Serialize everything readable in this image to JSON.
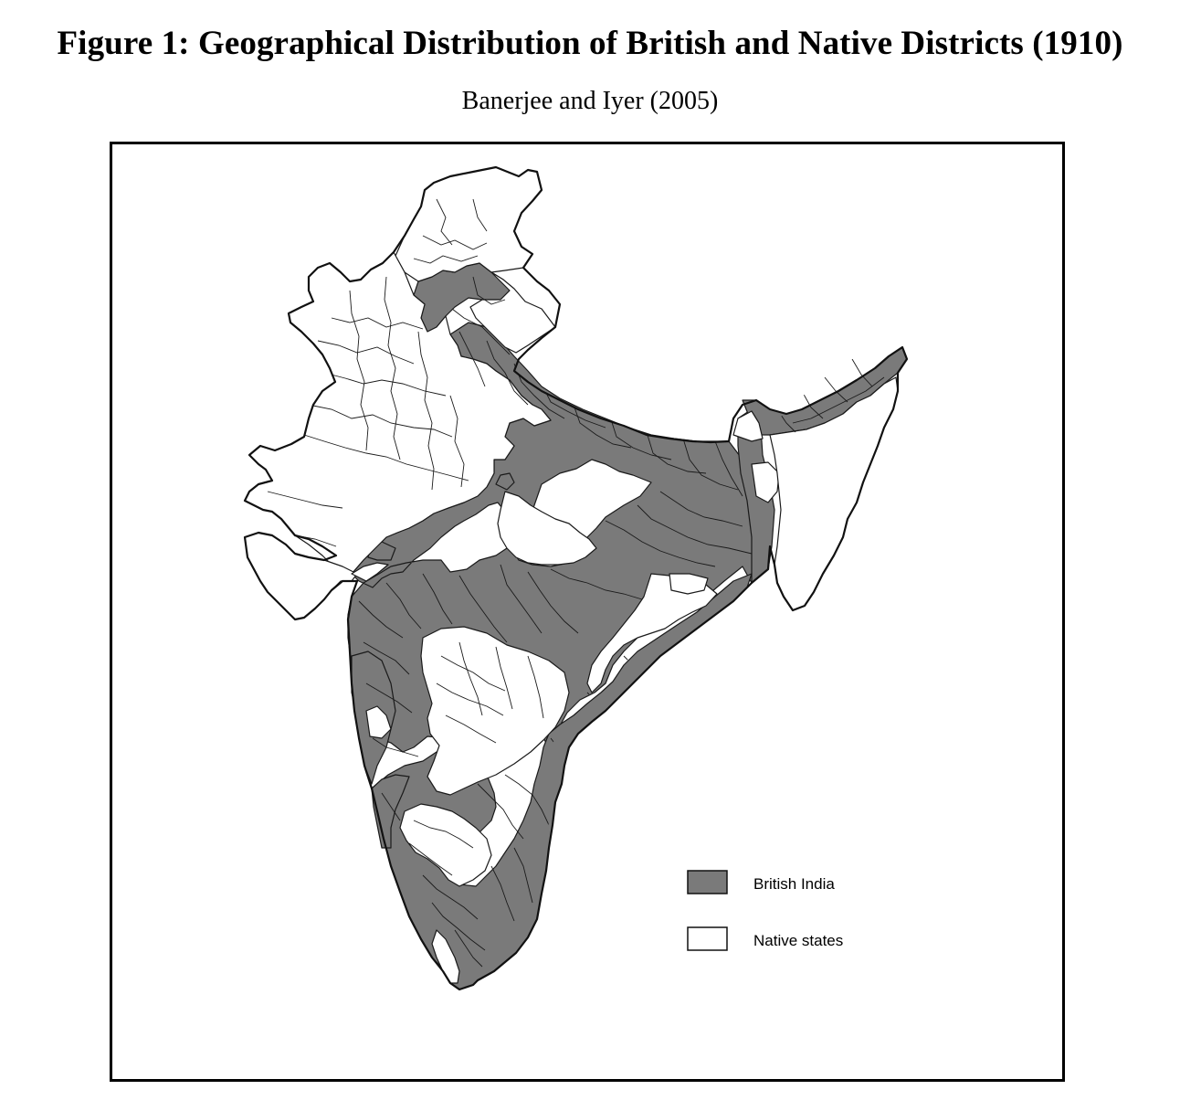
{
  "figure": {
    "title": "Figure 1: Geographical Distribution of British and Native Districts (1910)",
    "subtitle": "Banerjee and Iyer (2005)"
  },
  "map": {
    "legend": [
      {
        "label": "British India",
        "color": "#7a7a7a"
      },
      {
        "label": "Native states",
        "color": "#ffffff"
      }
    ],
    "colors": {
      "british": "#7a7a7a",
      "native": "#ffffff",
      "border": "#1a1a1a"
    }
  }
}
